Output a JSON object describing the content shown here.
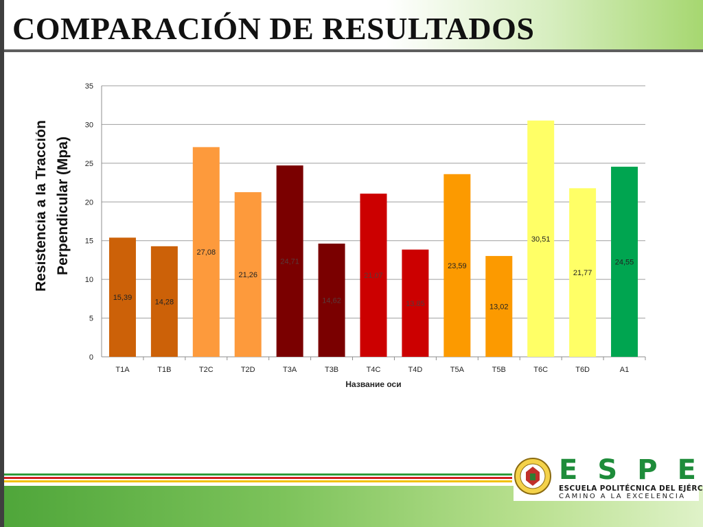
{
  "slide": {
    "title": "COMPARACIÓN DE RESULTADOS"
  },
  "logo": {
    "letters": [
      "E",
      "S",
      "P",
      "E"
    ],
    "line1": "ESCUELA POLITÉCNICA DEL EJÉRCITO",
    "line2": "CAMINO A LA EXCELENCIA"
  },
  "chart_data": {
    "type": "bar",
    "categories": [
      "T1A",
      "T1B",
      "T2C",
      "T2D",
      "T3A",
      "T3B",
      "T4C",
      "T4D",
      "T5A",
      "T5B",
      "T6C",
      "T6D",
      "A1"
    ],
    "values": [
      15.39,
      14.28,
      27.08,
      21.26,
      24.71,
      14.62,
      21.07,
      13.85,
      23.59,
      13.02,
      30.51,
      21.77,
      24.55
    ],
    "data_labels": [
      "15,39",
      "14,28",
      "27,08",
      "21,26",
      "24,71",
      "14,62",
      "21,07",
      "13,85",
      "23,59",
      "13,02",
      "30,51",
      "21,77",
      "24,55"
    ],
    "colors": [
      "#cc6108",
      "#cc6108",
      "#fd9a3c",
      "#fd9a3c",
      "#7a0000",
      "#7a0000",
      "#cc0000",
      "#cc0000",
      "#fc9a00",
      "#fc9a00",
      "#ffff66",
      "#ffff66",
      "#00a550"
    ],
    "ylabel_line1": "Resistencia a la Tracción",
    "ylabel_line2": "Perpendicular  (Mpa)",
    "xlabel": "Название оси",
    "ylim": [
      0,
      35
    ],
    "yticks": [
      0,
      5,
      10,
      15,
      20,
      25,
      30,
      35
    ],
    "grid": true,
    "legend": "none"
  }
}
